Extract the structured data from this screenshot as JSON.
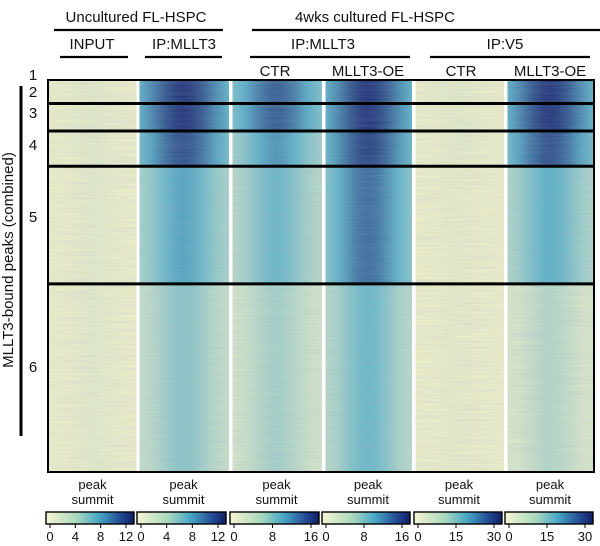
{
  "chart_data": {
    "type": "heatmap",
    "groups": [
      {
        "label": "Uncultured FL-HSPC",
        "columns": [
          0,
          1
        ]
      },
      {
        "label": "4wks cultured FL-HSPC",
        "columns": [
          2,
          3,
          4,
          5
        ]
      }
    ],
    "subgroups": [
      {
        "label": "INPUT",
        "columns": [
          0
        ]
      },
      {
        "label": "IP:MLLT3",
        "columns": [
          1
        ]
      },
      {
        "label": "IP:MLLT3",
        "columns": [
          2,
          3
        ]
      },
      {
        "label": "IP:V5",
        "columns": [
          4,
          5
        ]
      }
    ],
    "columns": [
      {
        "label": "",
        "footer": "peak summit",
        "scale_max": 12,
        "ticks": [
          0,
          4,
          8,
          12
        ],
        "cluster_intensity": [
          0.05,
          0.05,
          0.05,
          0.05,
          0.04,
          0.04
        ]
      },
      {
        "label": "",
        "footer": "peak summit",
        "scale_max": 12,
        "ticks": [
          0,
          4,
          8,
          12
        ],
        "cluster_intensity": [
          0.95,
          0.95,
          0.95,
          0.85,
          0.55,
          0.35
        ]
      },
      {
        "label": "CTR",
        "footer": "peak summit",
        "scale_max": 16,
        "ticks": [
          0,
          8,
          16
        ],
        "cluster_intensity": [
          0.8,
          0.8,
          0.8,
          0.6,
          0.45,
          0.25
        ]
      },
      {
        "label": "MLLT3-OE",
        "footer": "peak summit",
        "scale_max": 16,
        "ticks": [
          0,
          8,
          16
        ],
        "cluster_intensity": [
          0.95,
          0.95,
          0.95,
          0.9,
          0.75,
          0.45
        ]
      },
      {
        "label": "CTR",
        "footer": "peak summit",
        "scale_max": 30,
        "ticks": [
          0,
          15,
          30
        ],
        "cluster_intensity": [
          0.05,
          0.05,
          0.04,
          0.04,
          0.03,
          0.03
        ]
      },
      {
        "label": "MLLT3-OE",
        "footer": "peak summit",
        "scale_max": 30,
        "ticks": [
          0,
          15,
          30
        ],
        "cluster_intensity": [
          0.95,
          0.95,
          0.95,
          0.85,
          0.5,
          0.2
        ]
      }
    ],
    "clusters": [
      "1",
      "2",
      "3",
      "4",
      "5",
      "6"
    ],
    "cluster_fraction": [
      0.01,
      0.05,
      0.07,
      0.09,
      0.3,
      0.48
    ],
    "ylabel": "MLLT3-bound peaks (combined)"
  },
  "colors": {
    "low": "#f4f3c8",
    "mid": "#5cb3c8",
    "high": "#17246d",
    "separator": "#ffffff",
    "cluster_line": "#000000"
  }
}
